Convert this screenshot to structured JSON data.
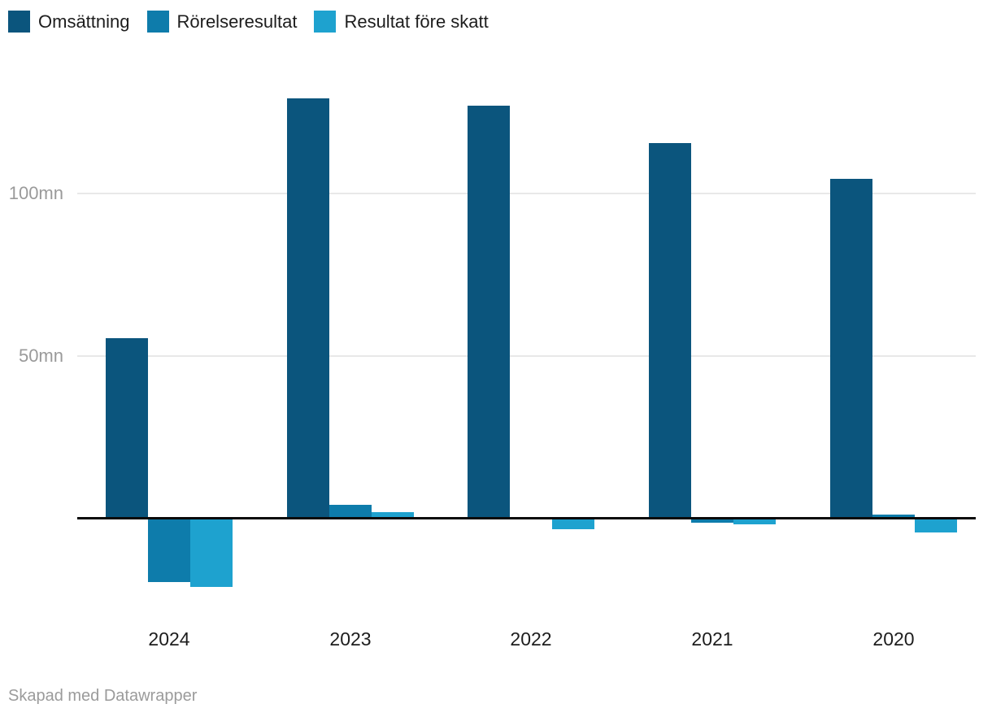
{
  "chart_data": {
    "type": "bar",
    "title": "",
    "categories": [
      "2024",
      "2023",
      "2022",
      "2021",
      "2020"
    ],
    "series": [
      {
        "name": "Omsättning",
        "color": "#0b557d",
        "values": [
          55,
          128.8,
          126.5,
          115,
          104
        ]
      },
      {
        "name": "Rörelseresultat",
        "color": "#0e7cab",
        "values": [
          -19.8,
          3.8,
          0,
          -1.5,
          0.7
        ]
      },
      {
        "name": "Resultat före skatt",
        "color": "#1ea2cf",
        "values": [
          -21.3,
          1.6,
          -3.5,
          -2,
          -4.4
        ]
      }
    ],
    "unit": "mn",
    "xlabel": "",
    "ylabel": "",
    "y_ticks": [
      {
        "value": 50,
        "label": "50mn"
      },
      {
        "value": 100,
        "label": "100mn"
      }
    ],
    "ylim": [
      -25,
      135
    ],
    "grid": "horizontal",
    "legend_position": "top-left"
  },
  "footer": {
    "credit": "Skapad med Datawrapper"
  },
  "colors": {
    "background": "#ffffff",
    "gridline": "#e8e8e8",
    "baseline": "#0a0a0a",
    "axis_label": "#9a9a9a",
    "category_label": "#1d1d1d"
  }
}
